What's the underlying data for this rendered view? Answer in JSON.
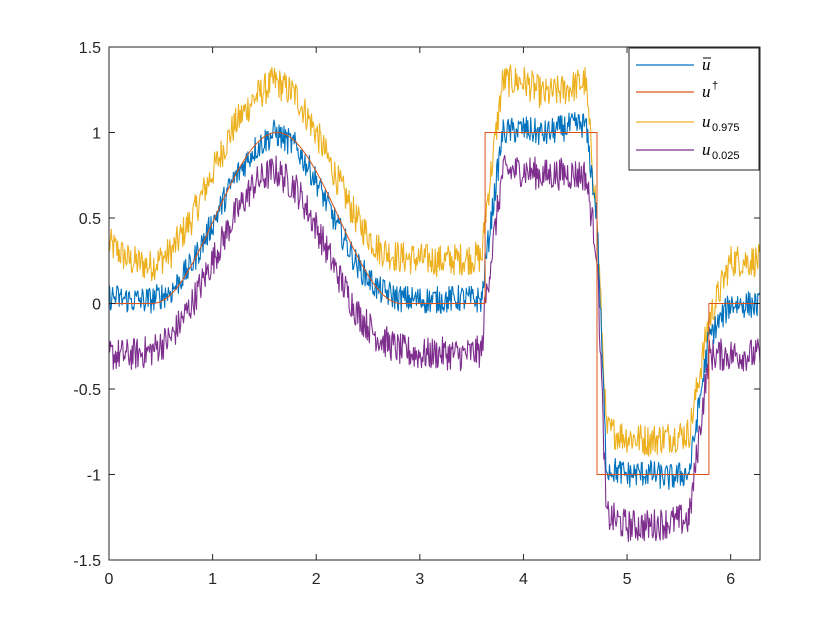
{
  "colors": {
    "mean": "#0072BD",
    "truth": "#D95319",
    "upper": "#EDB120",
    "lower": "#7E2F8E",
    "axis": "#262626",
    "background": "#ffffff"
  },
  "legend": {
    "placement": "top-right",
    "entries": [
      {
        "key": "mean",
        "base": "u",
        "sup": "",
        "sub": "",
        "bar": true
      },
      {
        "key": "truth",
        "base": "u",
        "sup": "†",
        "sub": "",
        "bar": false
      },
      {
        "key": "upper",
        "base": "u",
        "sup": "",
        "sub": "0.975",
        "bar": false
      },
      {
        "key": "lower",
        "base": "u",
        "sup": "",
        "sub": "0.025",
        "bar": false
      }
    ]
  },
  "chart_data": {
    "type": "line",
    "title": "",
    "xlabel": "",
    "ylabel": "",
    "xlim": [
      0,
      6.2832
    ],
    "ylim": [
      -1.5,
      1.5
    ],
    "xticks": [
      0,
      1,
      2,
      3,
      4,
      5,
      6
    ],
    "xtick_labels": [
      "0",
      "1",
      "2",
      "3",
      "4",
      "5",
      "6"
    ],
    "yticks": [
      -1.5,
      -1,
      -0.5,
      0,
      0.5,
      1,
      1.5
    ],
    "ytick_labels": [
      "-1.5",
      "-1",
      "-0.5",
      "0",
      "0.5",
      "1",
      "1.5"
    ],
    "grid": false,
    "true_function": {
      "description_of_pieces": "bump on [0.42,2.82] peaking at 1.62; 1 on [3.63,4.71]; -1 on [4.71,5.79]; 0 elsewhere",
      "pieces": [
        {
          "x_from": 0,
          "x_to": 0.42,
          "value": 0
        },
        {
          "x_from": 0.42,
          "x_to": 2.82,
          "shape": "cosine-bump",
          "peak_x": 1.62,
          "peak_value": 1
        },
        {
          "x_from": 2.82,
          "x_to": 3.63,
          "value": 0
        },
        {
          "x_from": 3.63,
          "x_to": 4.71,
          "value": 1
        },
        {
          "x_from": 4.71,
          "x_to": 5.79,
          "value": -1
        },
        {
          "x_from": 5.79,
          "x_to": 6.2832,
          "value": 0
        }
      ]
    },
    "series": [
      {
        "key": "mean",
        "x": [
          0,
          0.2,
          0.4,
          0.6,
          0.8,
          1.0,
          1.2,
          1.4,
          1.6,
          1.8,
          2.0,
          2.2,
          2.4,
          2.6,
          2.8,
          3.0,
          3.2,
          3.4,
          3.6,
          3.63,
          3.8,
          4.0,
          4.2,
          4.4,
          4.6,
          4.71,
          4.8,
          5.0,
          5.2,
          5.4,
          5.6,
          5.79,
          6.0,
          6.28
        ],
        "y": [
          0.04,
          0.02,
          0.02,
          0.07,
          0.23,
          0.47,
          0.72,
          0.9,
          1.0,
          0.92,
          0.72,
          0.46,
          0.22,
          0.08,
          0.03,
          0.02,
          0.02,
          0.03,
          0.02,
          0.22,
          1.0,
          1.02,
          0.99,
          1.03,
          1.05,
          0.5,
          -0.96,
          -1.0,
          -0.99,
          -1.02,
          -0.99,
          -0.2,
          0.0,
          -0.01
        ],
        "noise": 0.05
      },
      {
        "key": "truth",
        "x": [
          0,
          0.42,
          0.6,
          0.8,
          1.0,
          1.2,
          1.4,
          1.62,
          1.8,
          2.0,
          2.2,
          2.4,
          2.6,
          2.82,
          3.63,
          3.63,
          4.71,
          4.71,
          5.79,
          5.79,
          6.28
        ],
        "y": [
          0,
          0,
          0.06,
          0.23,
          0.46,
          0.7,
          0.9,
          1.0,
          0.95,
          0.8,
          0.57,
          0.33,
          0.12,
          0,
          0,
          1,
          1,
          -1,
          -1,
          0,
          0
        ],
        "noise": 0
      },
      {
        "key": "upper",
        "x": [
          0,
          0.2,
          0.4,
          0.6,
          0.8,
          1.0,
          1.2,
          1.4,
          1.6,
          1.8,
          2.0,
          2.2,
          2.4,
          2.6,
          2.8,
          3.0,
          3.2,
          3.4,
          3.6,
          3.63,
          3.8,
          4.0,
          4.2,
          4.4,
          4.6,
          4.71,
          4.8,
          5.0,
          5.2,
          5.4,
          5.6,
          5.79,
          6.0,
          6.28
        ],
        "y": [
          0.35,
          0.25,
          0.22,
          0.3,
          0.5,
          0.77,
          1.03,
          1.2,
          1.3,
          1.22,
          1.0,
          0.73,
          0.48,
          0.32,
          0.27,
          0.26,
          0.25,
          0.26,
          0.27,
          0.5,
          1.3,
          1.3,
          1.22,
          1.25,
          1.3,
          0.5,
          -0.74,
          -0.78,
          -0.8,
          -0.78,
          -0.76,
          -0.1,
          0.25,
          0.25
        ],
        "noise": 0.06
      },
      {
        "key": "lower",
        "x": [
          0,
          0.2,
          0.4,
          0.6,
          0.8,
          1.0,
          1.2,
          1.4,
          1.6,
          1.8,
          2.0,
          2.2,
          2.4,
          2.6,
          2.8,
          3.0,
          3.2,
          3.4,
          3.6,
          3.63,
          3.8,
          4.0,
          4.2,
          4.4,
          4.6,
          4.71,
          4.8,
          5.0,
          5.2,
          5.4,
          5.6,
          5.79,
          6.0,
          6.28
        ],
        "y": [
          -0.3,
          -0.3,
          -0.28,
          -0.2,
          0.0,
          0.25,
          0.5,
          0.7,
          0.78,
          0.68,
          0.45,
          0.18,
          -0.06,
          -0.2,
          -0.27,
          -0.3,
          -0.29,
          -0.3,
          -0.28,
          0.0,
          0.77,
          0.78,
          0.75,
          0.76,
          0.75,
          0.3,
          -1.24,
          -1.3,
          -1.3,
          -1.28,
          -1.26,
          -0.3,
          -0.3,
          -0.3
        ],
        "noise": 0.06
      }
    ]
  }
}
